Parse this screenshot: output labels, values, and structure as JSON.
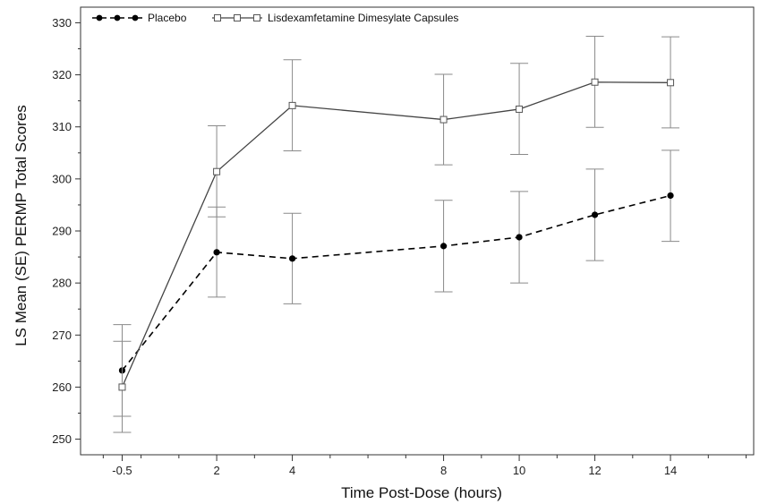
{
  "chart_data": {
    "type": "line",
    "xlabel": "Time Post-Dose (hours)",
    "ylabel": "LS Mean (SE) PERMP Total Scores",
    "x_ticks": [
      -0.5,
      2,
      4,
      8,
      10,
      12,
      14
    ],
    "x_tick_labels": [
      "-0.5",
      "2",
      "4",
      "8",
      "10",
      "12",
      "14"
    ],
    "xlim": [
      -1.6,
      16.2
    ],
    "ylim": [
      247,
      333
    ],
    "y_ticks": [
      250,
      260,
      270,
      280,
      290,
      300,
      310,
      320,
      330
    ],
    "y_tick_labels": [
      "250",
      "260",
      "270",
      "280",
      "290",
      "300",
      "310",
      "320",
      "330"
    ],
    "legend_position": "top-left",
    "grid": false,
    "series": [
      {
        "name": "Placebo",
        "marker": "filled-circle",
        "line_style": "dashed",
        "color": "#000000",
        "x": [
          -0.5,
          2,
          4,
          8,
          10,
          12,
          14
        ],
        "y": [
          263.2,
          285.9,
          284.7,
          287.1,
          288.8,
          293.1,
          296.8
        ],
        "err_low": [
          254.4,
          277.3,
          276.0,
          278.3,
          280.0,
          284.3,
          288.0
        ],
        "err_high": [
          272.0,
          294.6,
          293.4,
          295.9,
          297.6,
          301.9,
          305.5
        ]
      },
      {
        "name": "Lisdexamfetamine Dimesylate Capsules",
        "marker": "open-square",
        "line_style": "solid",
        "color": "#555555",
        "x": [
          -0.5,
          2,
          4,
          8,
          10,
          12,
          14
        ],
        "y": [
          260.0,
          301.4,
          314.1,
          311.4,
          313.4,
          318.6,
          318.5
        ],
        "err_low": [
          251.3,
          292.7,
          305.4,
          302.7,
          304.7,
          309.9,
          309.8
        ],
        "err_high": [
          268.8,
          310.2,
          322.9,
          320.1,
          322.2,
          327.4,
          327.3
        ]
      }
    ]
  }
}
